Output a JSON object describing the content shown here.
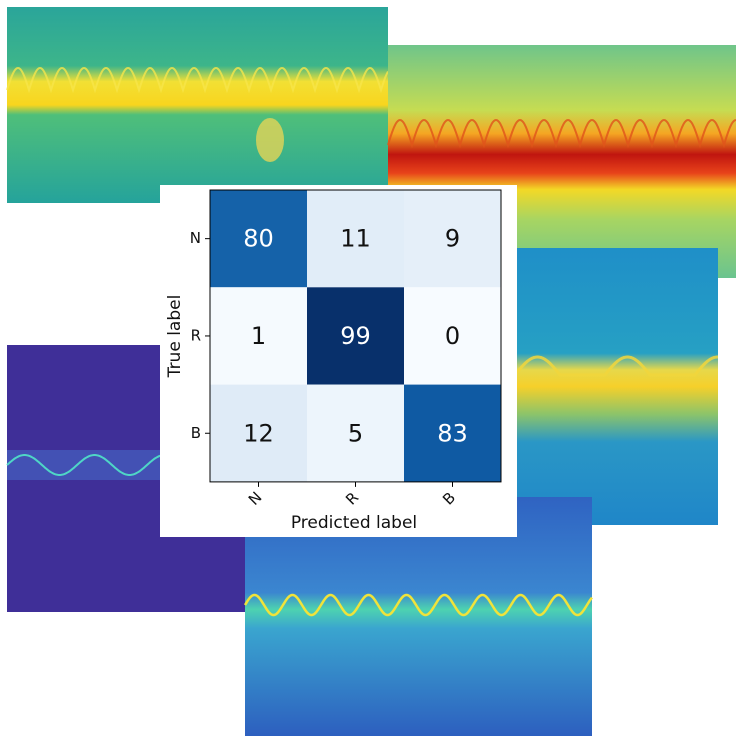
{
  "chart_data": {
    "type": "heatmap",
    "x_label": "Predicted label",
    "y_label": "True label",
    "x_categories": [
      "N",
      "R",
      "B"
    ],
    "y_categories": [
      "N",
      "R",
      "B"
    ],
    "values": [
      [
        80,
        11,
        9
      ],
      [
        1,
        99,
        0
      ],
      [
        12,
        5,
        83
      ]
    ]
  }
}
